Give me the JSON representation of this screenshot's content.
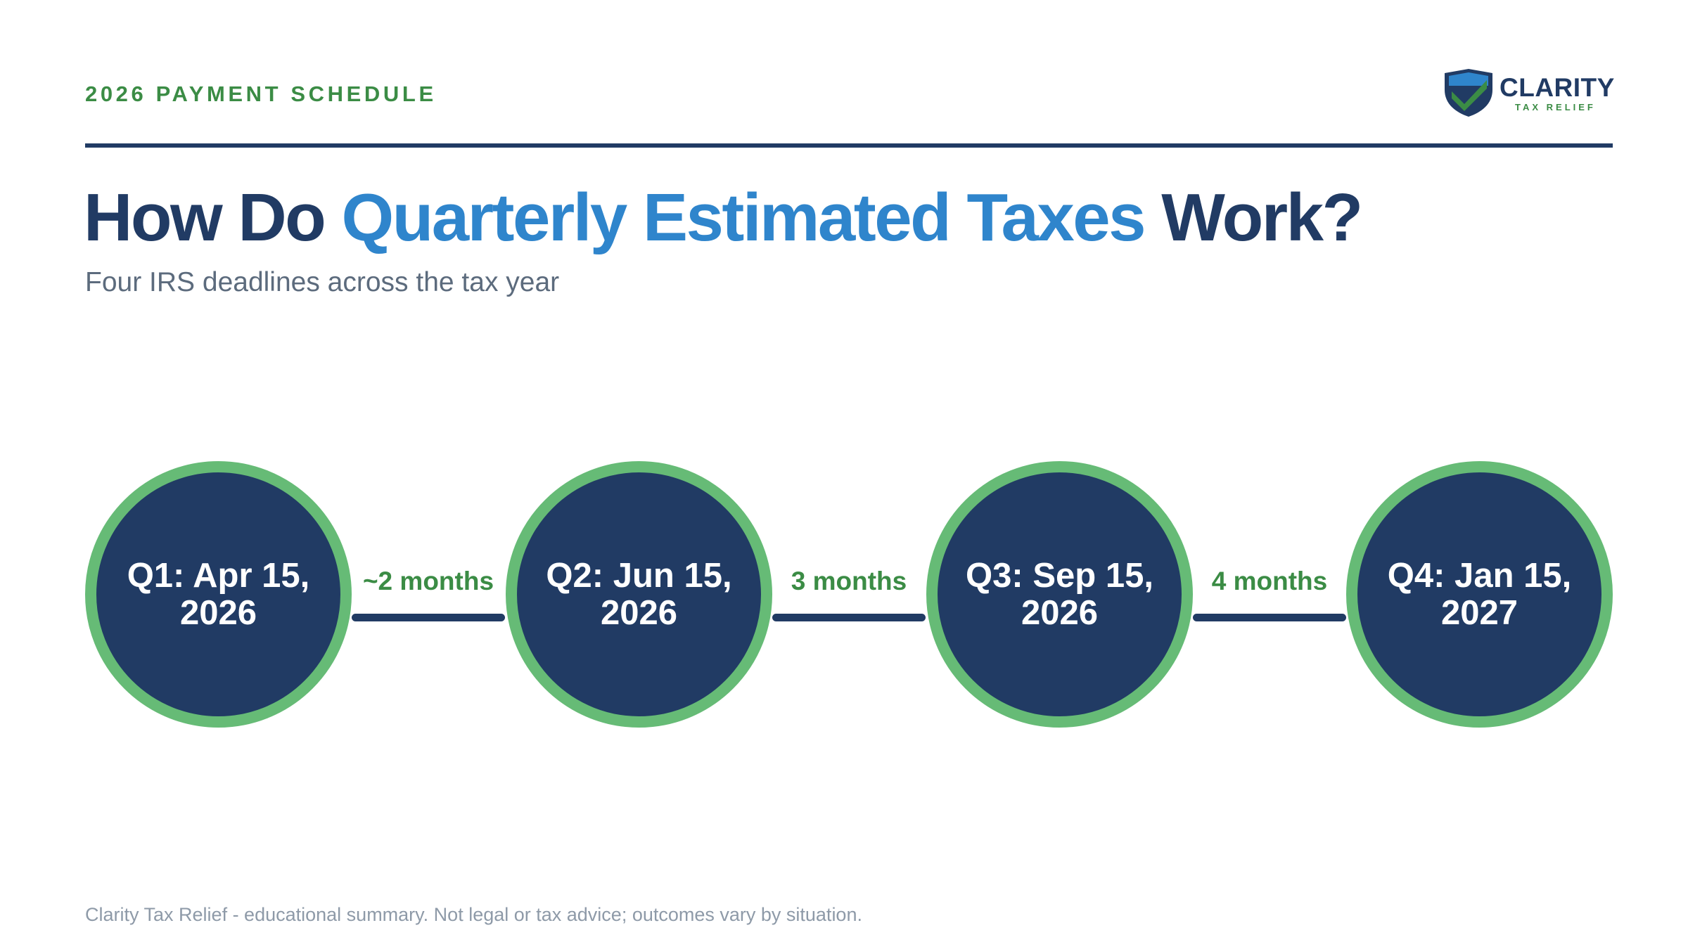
{
  "header": {
    "eyebrow": "2026 PAYMENT SCHEDULE",
    "logo": {
      "name": "CLARITY",
      "tagline": "TAX RELIEF"
    }
  },
  "title": {
    "part1": "How Do ",
    "highlight": "Quarterly Estimated Taxes",
    "part2": " Work?"
  },
  "subtitle": "Four IRS deadlines across the tax year",
  "timeline": {
    "nodes": [
      {
        "label": "Q1: Apr 15, 2026"
      },
      {
        "label": "Q2: Jun 15, 2026"
      },
      {
        "label": "Q3: Sep 15, 2026"
      },
      {
        "label": "Q4: Jan 15, 2027"
      }
    ],
    "gaps": [
      {
        "label": "~2 months"
      },
      {
        "label": "3 months"
      },
      {
        "label": "4 months"
      }
    ]
  },
  "footer": "Clarity Tax Relief - educational summary. Not legal or tax advice; outcomes vary by situation.",
  "colors": {
    "navy": "#213b64",
    "accent_blue": "#2f85cc",
    "green": "#3b8c45",
    "ring_green": "#66bb76",
    "muted_text": "#5c6b7d"
  }
}
